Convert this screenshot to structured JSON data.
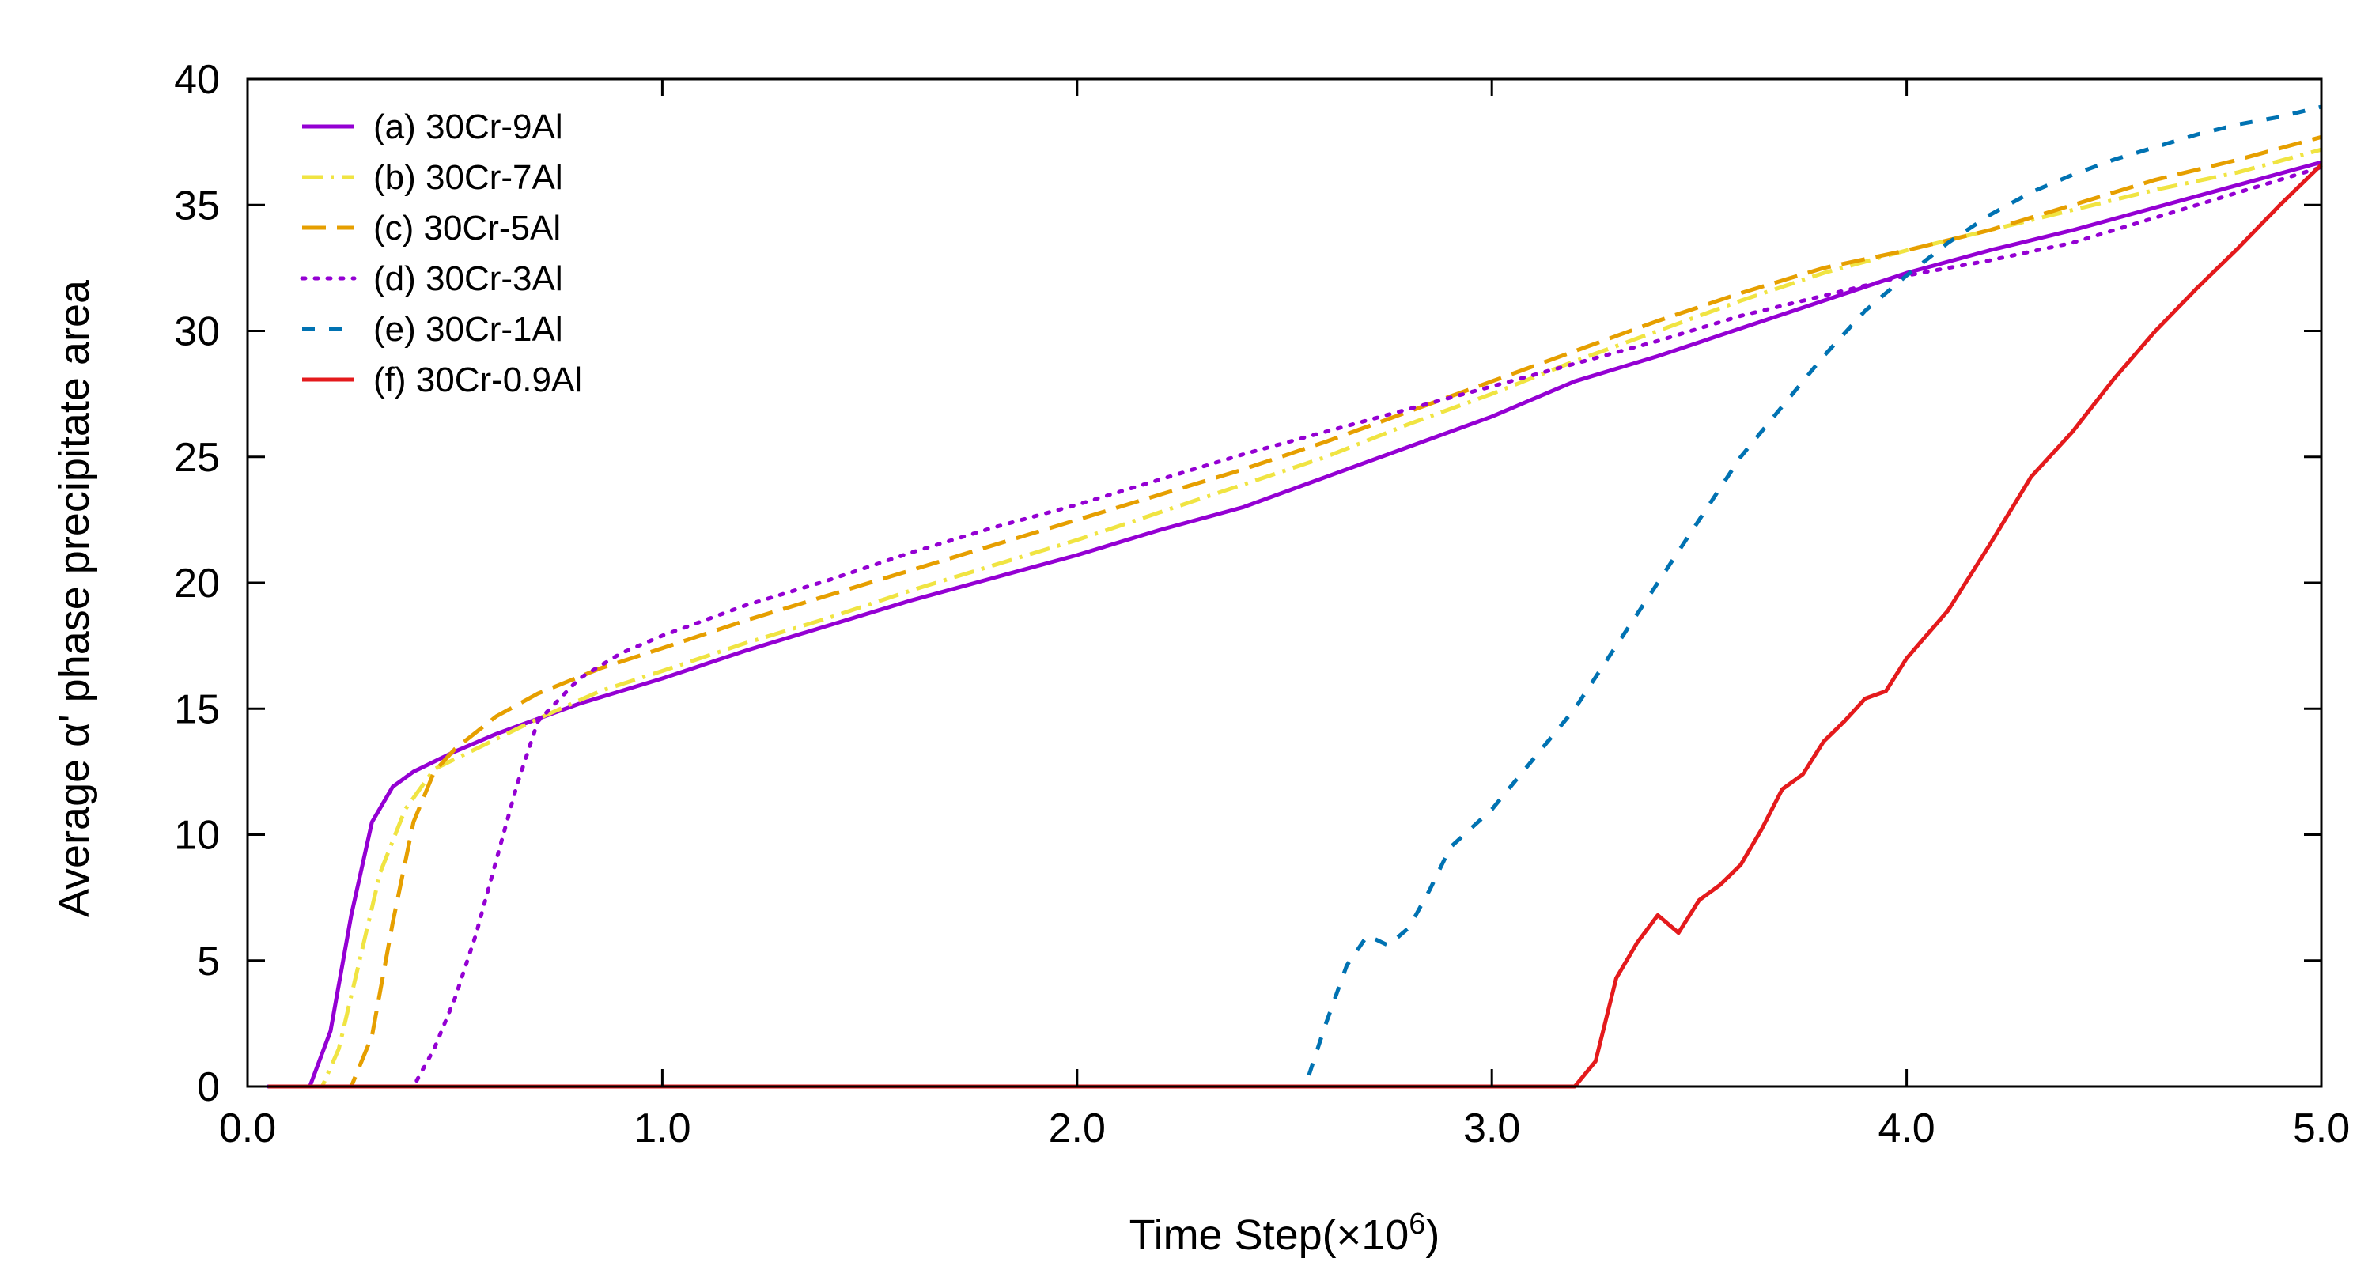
{
  "chart_data": {
    "type": "line",
    "title": "",
    "xlabel": "Time Step(×10",
    "xlabel_exponent": "6",
    "xlabel_suffix": ")",
    "ylabel": "Average  α' phase precipitate area",
    "xlim": [
      0.0,
      5.0
    ],
    "ylim": [
      0,
      40
    ],
    "x_ticks": [
      0.0,
      1.0,
      2.0,
      3.0,
      4.0,
      5.0
    ],
    "x_tick_labels": [
      "0.0",
      "1.0",
      "2.0",
      "3.0",
      "4.0",
      "5.0"
    ],
    "y_ticks": [
      0,
      5,
      10,
      15,
      20,
      25,
      30,
      35,
      40
    ],
    "y_tick_labels": [
      "0",
      "5",
      "10",
      "15",
      "20",
      "25",
      "30",
      "35",
      "40"
    ],
    "grid": false,
    "legend_position": "top-left",
    "series": [
      {
        "name": "(a) 30Cr-9Al",
        "color": "#9400d3",
        "dash": "solid",
        "x": [
          0.05,
          0.15,
          0.2,
          0.25,
          0.3,
          0.35,
          0.4,
          0.5,
          0.6,
          0.7,
          0.8,
          1.0,
          1.2,
          1.4,
          1.6,
          1.8,
          2.0,
          2.2,
          2.4,
          2.5,
          2.6,
          2.8,
          3.0,
          3.2,
          3.4,
          3.6,
          3.8,
          4.0,
          4.2,
          4.4,
          4.6,
          4.8,
          5.0
        ],
        "values": [
          0,
          0,
          2.2,
          6.8,
          10.5,
          11.9,
          12.5,
          13.3,
          14.0,
          14.6,
          15.2,
          16.2,
          17.3,
          18.3,
          19.3,
          20.2,
          21.1,
          22.1,
          23.0,
          23.6,
          24.2,
          25.4,
          26.6,
          28.0,
          29.0,
          30.1,
          31.2,
          32.3,
          33.2,
          34.0,
          34.9,
          35.8,
          36.7
        ]
      },
      {
        "name": "(b) 30Cr-7Al",
        "color": "#f0e442",
        "dash": "dashdot",
        "x": [
          0.05,
          0.18,
          0.22,
          0.27,
          0.32,
          0.38,
          0.45,
          0.55,
          0.7,
          0.85,
          1.0,
          1.2,
          1.4,
          1.6,
          1.8,
          2.0,
          2.2,
          2.4,
          2.6,
          2.8,
          3.0,
          3.2,
          3.4,
          3.6,
          3.8,
          4.0,
          4.2,
          4.4,
          4.6,
          4.8,
          5.0
        ],
        "values": [
          0,
          0,
          1.5,
          5.0,
          8.5,
          11.0,
          12.6,
          13.4,
          14.6,
          15.7,
          16.5,
          17.6,
          18.6,
          19.7,
          20.7,
          21.7,
          22.8,
          23.9,
          25.0,
          26.3,
          27.5,
          28.8,
          30.0,
          31.2,
          32.3,
          33.2,
          34.0,
          34.8,
          35.6,
          36.3,
          37.2
        ]
      },
      {
        "name": "(c) 30Cr-5Al",
        "color": "#e69f00",
        "dash": "dash",
        "x": [
          0.05,
          0.25,
          0.3,
          0.35,
          0.4,
          0.45,
          0.5,
          0.6,
          0.7,
          0.85,
          1.0,
          1.2,
          1.4,
          1.6,
          1.8,
          2.0,
          2.2,
          2.4,
          2.6,
          2.8,
          3.0,
          3.2,
          3.4,
          3.6,
          3.8,
          4.0,
          4.2,
          4.4,
          4.6,
          4.8,
          5.0
        ],
        "values": [
          0,
          0,
          2.0,
          6.5,
          10.5,
          12.5,
          13.4,
          14.7,
          15.6,
          16.6,
          17.4,
          18.5,
          19.5,
          20.5,
          21.5,
          22.5,
          23.5,
          24.5,
          25.6,
          26.8,
          28.0,
          29.2,
          30.4,
          31.5,
          32.5,
          33.2,
          34.0,
          35.0,
          36.0,
          36.8,
          37.7
        ]
      },
      {
        "name": "(d) 30Cr-3Al",
        "color": "#9400d3",
        "dash": "dot",
        "x": [
          0.05,
          0.4,
          0.45,
          0.5,
          0.55,
          0.6,
          0.65,
          0.7,
          0.8,
          0.9,
          1.0,
          1.2,
          1.4,
          1.6,
          1.8,
          2.0,
          2.2,
          2.4,
          2.6,
          2.8,
          3.0,
          3.2,
          3.4,
          3.6,
          3.8,
          4.0,
          4.2,
          4.4,
          4.6,
          4.8,
          5.0
        ],
        "values": [
          0,
          0,
          1.5,
          3.5,
          6.0,
          9.0,
          12.0,
          14.5,
          16.2,
          17.2,
          17.9,
          19.1,
          20.1,
          21.2,
          22.2,
          23.1,
          24.1,
          25.1,
          26.0,
          26.9,
          27.8,
          28.7,
          29.6,
          30.6,
          31.4,
          32.2,
          32.8,
          33.5,
          34.5,
          35.5,
          36.5
        ]
      },
      {
        "name": "(e) 30Cr-1Al",
        "color": "#0072b2",
        "dash": "shortdash",
        "x": [
          0.05,
          2.55,
          2.6,
          2.65,
          2.7,
          2.75,
          2.8,
          2.85,
          2.9,
          3.0,
          3.1,
          3.2,
          3.3,
          3.4,
          3.5,
          3.6,
          3.7,
          3.8,
          3.9,
          4.0,
          4.1,
          4.2,
          4.3,
          4.4,
          4.5,
          4.6,
          4.7,
          4.8,
          4.9,
          5.0
        ],
        "values": [
          0,
          0,
          2.5,
          4.8,
          6.0,
          5.6,
          6.3,
          7.8,
          9.5,
          11.0,
          13.0,
          15.0,
          17.5,
          20.0,
          22.5,
          25.0,
          27.0,
          29.0,
          30.8,
          32.2,
          33.5,
          34.6,
          35.5,
          36.2,
          36.8,
          37.3,
          37.8,
          38.2,
          38.5,
          38.9
        ]
      },
      {
        "name": "(f) 30Cr-0.9Al",
        "color": "#e41a1c",
        "dash": "solid",
        "x": [
          0.05,
          3.2,
          3.25,
          3.3,
          3.35,
          3.4,
          3.45,
          3.5,
          3.55,
          3.6,
          3.65,
          3.7,
          3.75,
          3.8,
          3.85,
          3.9,
          3.95,
          4.0,
          4.1,
          4.2,
          4.3,
          4.4,
          4.5,
          4.6,
          4.7,
          4.8,
          4.9,
          5.0
        ],
        "values": [
          0,
          0,
          1.0,
          4.3,
          5.7,
          6.8,
          6.1,
          7.4,
          8.0,
          8.8,
          10.2,
          11.8,
          12.4,
          13.7,
          14.5,
          15.4,
          15.7,
          17.0,
          18.9,
          21.5,
          24.2,
          26.0,
          28.1,
          30.0,
          31.7,
          33.3,
          35.0,
          36.6
        ]
      }
    ]
  }
}
